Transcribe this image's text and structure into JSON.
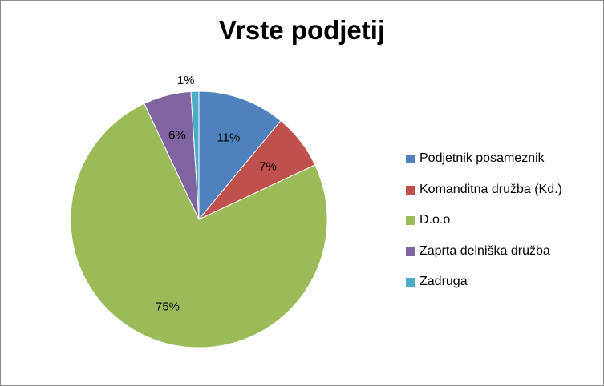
{
  "chart_data": {
    "type": "pie",
    "title": "Vrste podjetij",
    "legend_position": "right",
    "slices": [
      {
        "label": "Podjetnik posameznik",
        "value": 11,
        "value_label": "11%",
        "color": "#4f81bd"
      },
      {
        "label": "Komanditna družba (Kd.)",
        "value": 7,
        "value_label": "7%",
        "color": "#c0504d"
      },
      {
        "label": "D.o.o.",
        "value": 75,
        "value_label": "75%",
        "color": "#9bbb59"
      },
      {
        "label": "Zaprta delniška družba",
        "value": 6,
        "value_label": "6%",
        "color": "#8064a2"
      },
      {
        "label": "Zadruga",
        "value": 1,
        "value_label": "1%",
        "color": "#4bacc6"
      }
    ]
  }
}
